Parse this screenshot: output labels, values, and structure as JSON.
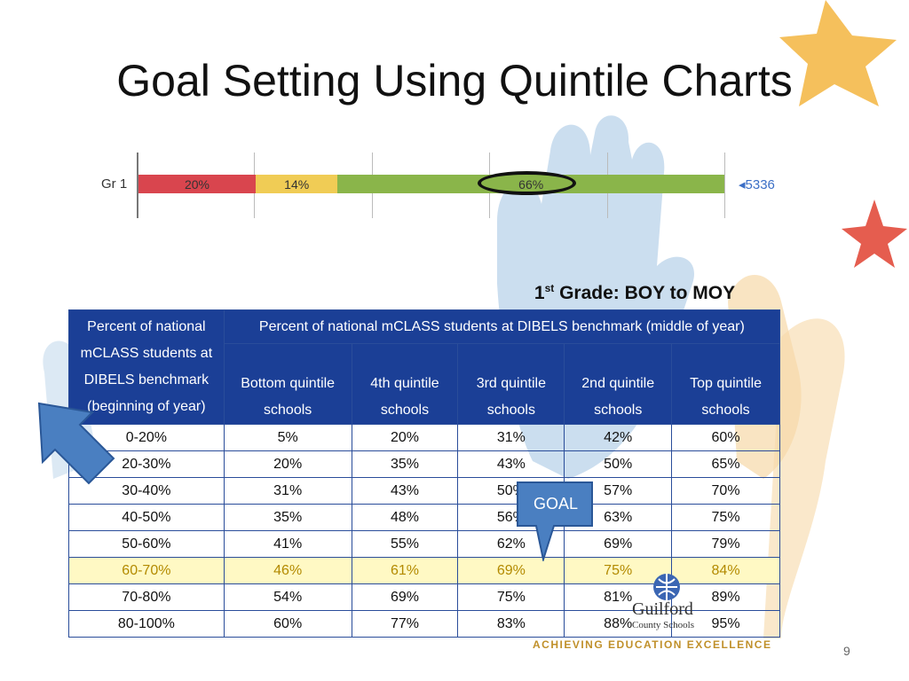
{
  "slide": {
    "title": "Goal Setting Using Quintile Charts",
    "page_number": "9"
  },
  "bar_chart": {
    "row_label": "Gr 1",
    "segments": [
      {
        "label": "20%",
        "value": 20,
        "color": "#d9454e"
      },
      {
        "label": "14%",
        "value": 14,
        "color": "#f0cc55"
      },
      {
        "label": "66%",
        "value": 66,
        "color": "#8ab54a"
      }
    ],
    "count_label": "◂5336"
  },
  "subtitle": {
    "ordinal": "1",
    "suffix": "st",
    "rest": " Grade: BOY to MOY"
  },
  "table": {
    "corner_header": "Percent of national mCLASS students at DIBELS benchmark (beginning of year)",
    "group_header": "Percent of national mCLASS students at DIBELS benchmark (middle of year)",
    "columns": [
      "Bottom quintile schools",
      "4th quintile schools",
      "3rd quintile schools",
      "2nd quintile schools",
      "Top quintile schools"
    ],
    "rows": [
      [
        "0-20%",
        "5%",
        "20%",
        "31%",
        "42%",
        "60%"
      ],
      [
        "20-30%",
        "20%",
        "35%",
        "43%",
        "50%",
        "65%"
      ],
      [
        "30-40%",
        "31%",
        "43%",
        "50%",
        "57%",
        "70%"
      ],
      [
        "40-50%",
        "35%",
        "48%",
        "56%",
        "63%",
        "75%"
      ],
      [
        "50-60%",
        "41%",
        "55%",
        "62%",
        "69%",
        "79%"
      ],
      [
        "60-70%",
        "46%",
        "61%",
        "69%",
        "75%",
        "84%"
      ],
      [
        "70-80%",
        "54%",
        "69%",
        "75%",
        "81%",
        "89%"
      ],
      [
        "80-100%",
        "60%",
        "77%",
        "83%",
        "88%",
        "95%"
      ]
    ],
    "highlight_row": 5
  },
  "callout": {
    "label": "GOAL"
  },
  "logo": {
    "name": "Guilford",
    "sub": "County Schools",
    "tagline": "ACHIEVING EDUCATION EXCELLENCE"
  }
}
